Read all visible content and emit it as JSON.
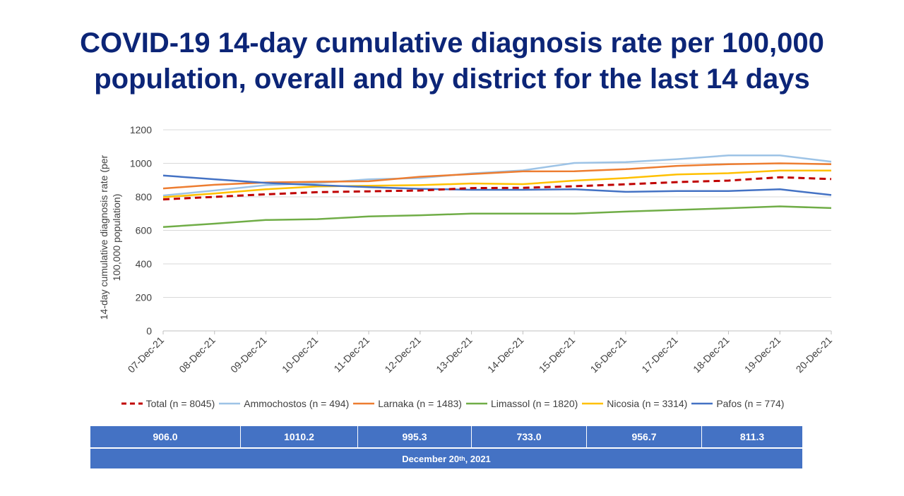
{
  "title_line1": "COVID-19 14-day cumulative diagnosis rate per 100,000",
  "title_line2": "population, overall and by district for the last 14 days",
  "chart_data": {
    "type": "line",
    "ylabel_line1": "14-day cumulative diagnosis rate (per",
    "ylabel_line2": "100,000 population)",
    "ylim": [
      0,
      1200
    ],
    "yticks": [
      0,
      200,
      400,
      600,
      800,
      1000,
      1200
    ],
    "grid": true,
    "legend_position": "bottom",
    "x": [
      "07-Dec-21",
      "08-Dec-21",
      "09-Dec-21",
      "10-Dec-21",
      "11-Dec-21",
      "12-Dec-21",
      "13-Dec-21",
      "14-Dec-21",
      "15-Dec-21",
      "16-Dec-21",
      "17-Dec-21",
      "18-Dec-21",
      "19-Dec-21",
      "20-Dec-21"
    ],
    "series": [
      {
        "name": "Ammochostos (n = 494)",
        "color": "#9dc3e6",
        "dash": false,
        "values": [
          808,
          838,
          870,
          882,
          905,
          912,
          940,
          958,
          1002,
          1007,
          1025,
          1047,
          1047,
          1010
        ]
      },
      {
        "name": "Larnaka (n = 1483)",
        "color": "#ed7d31",
        "dash": false,
        "values": [
          850,
          872,
          886,
          890,
          893,
          920,
          936,
          952,
          953,
          965,
          985,
          995,
          1000,
          995
        ]
      },
      {
        "name": "Limassol (n = 1820)",
        "color": "#70ad47",
        "dash": false,
        "values": [
          620,
          640,
          662,
          667,
          683,
          690,
          700,
          700,
          700,
          712,
          722,
          732,
          743,
          733
        ]
      },
      {
        "name": "Nicosia (n = 3314)",
        "color": "#ffc000",
        "dash": false,
        "values": [
          798,
          820,
          845,
          862,
          866,
          870,
          880,
          876,
          897,
          912,
          934,
          941,
          957,
          957
        ]
      },
      {
        "name": "Pafos (n = 774)",
        "color": "#4472c4",
        "dash": false,
        "values": [
          927,
          905,
          883,
          870,
          858,
          848,
          842,
          842,
          845,
          830,
          835,
          835,
          845,
          811
        ]
      },
      {
        "name": "Total (n = 8045)",
        "color": "#c00000",
        "dash": true,
        "values": [
          785,
          800,
          815,
          828,
          833,
          838,
          852,
          854,
          863,
          875,
          888,
          897,
          917,
          906
        ]
      }
    ],
    "legend_order": [
      "Total (n = 8045)",
      "Ammochostos (n = 494)",
      "Larnaka (n = 1483)",
      "Limassol (n = 1820)",
      "Nicosia (n = 3314)",
      "Pafos (n = 774)"
    ]
  },
  "table": {
    "values": [
      "906.0",
      "1010.2",
      "995.3",
      "733.0",
      "956.7",
      "811.3"
    ],
    "date_prefix": "December 20",
    "date_sup": "th",
    "date_suffix": " , 2021"
  }
}
